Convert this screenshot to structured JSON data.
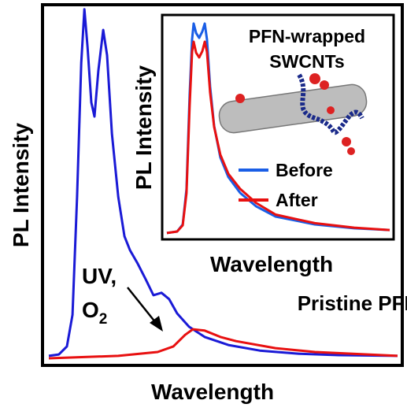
{
  "chart_data": [
    {
      "type": "line",
      "xlabel": "Wavelength",
      "ylabel": "PL Intensity",
      "annotations": [
        "UV,",
        "O",
        "2",
        "Pristine PFN"
      ],
      "xlim": [
        0,
        100
      ],
      "ylim": [
        0,
        100
      ],
      "series": [
        {
          "color": "#1a1ad6",
          "x": [
            0,
            2.9,
            5.2,
            6.8,
            8.1,
            9.3,
            10.2,
            11.1,
            12.2,
            13.1,
            14.2,
            15.6,
            16.7,
            18.1,
            19.9,
            21.7,
            23.3,
            25.5,
            27.8,
            30,
            32.3,
            34.5,
            36.8,
            40.2,
            44.7,
            51.5,
            60.5,
            71.8,
            83.1,
            100
          ],
          "values": [
            0.7,
            1.1,
            3.4,
            12.4,
            46.1,
            84.3,
            99.6,
            88.8,
            73,
            69,
            82,
            93.7,
            86.5,
            64,
            46.1,
            34.8,
            30.8,
            27,
            22.5,
            18,
            18.7,
            16.9,
            12.8,
            9,
            6.1,
            3.8,
            2.2,
            1.3,
            0.9,
            0.7
          ]
        },
        {
          "color": "#e81010",
          "x": [
            0,
            19.9,
            31.2,
            35.7,
            39.1,
            41.3,
            44.7,
            49.2,
            53.7,
            65,
            76.3,
            100
          ],
          "values": [
            0,
            0.7,
            1.8,
            3.4,
            6.7,
            8.3,
            7.9,
            6.1,
            4.9,
            2.9,
            1.8,
            0.7
          ]
        }
      ]
    },
    {
      "type": "line",
      "xlabel": "Wavelength",
      "ylabel": "PL Intensity",
      "annotations": [
        "PFN-wrapped",
        "SWCNTs"
      ],
      "xlim": [
        0,
        100
      ],
      "ylim": [
        0,
        100
      ],
      "x": [
        0,
        4.6,
        7.1,
        8.8,
        10.2,
        11.3,
        12,
        13.1,
        14.5,
        15.9,
        17,
        18,
        19.4,
        21.2,
        24,
        27.6,
        32.9,
        40,
        48.8,
        66.4,
        84.1,
        100
      ],
      "series": [
        {
          "name": "Before",
          "color": "#1a5ee6",
          "values": [
            0.4,
            1.1,
            4.4,
            20.9,
            65,
            90.8,
            98.2,
            93.8,
            91.5,
            94.5,
            98.2,
            90.8,
            68.8,
            50.4,
            35.7,
            26.5,
            19.1,
            12.9,
            8.1,
            4.4,
            2.6,
            1.8
          ]
        },
        {
          "name": "After",
          "color": "#e81010",
          "values": [
            0.4,
            1.1,
            4,
            19,
            60,
            85,
            89.7,
            84.6,
            82.4,
            85.3,
            89.7,
            85,
            66,
            50,
            37,
            28,
            21,
            14.5,
            9,
            5,
            2.9,
            1.8
          ]
        }
      ]
    }
  ]
}
